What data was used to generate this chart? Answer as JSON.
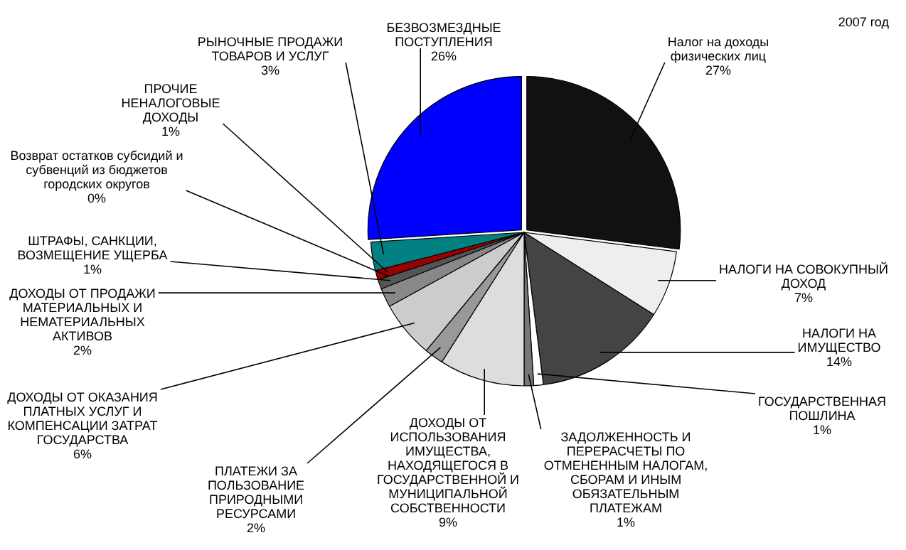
{
  "chart_data": {
    "type": "pie",
    "title": "2007 год",
    "categories": [
      "Налог на доходы физических лиц",
      "НАЛОГИ НА СОВОКУПНЫЙ ДОХОД",
      "НАЛОГИ НА ИМУЩЕСТВО",
      "ГОСУДАРСТВЕННАЯ ПОШЛИНА",
      "ЗАДОЛЖЕННОСТЬ И ПЕРЕРАСЧЕТЫ ПО ОТМЕНЕННЫМ НАЛОГАМ, СБОРАМ И ИНЫМ ОБЯЗАТЕЛЬНЫМ ПЛАТЕЖАМ",
      "ДОХОДЫ ОТ ИСПОЛЬЗОВАНИЯ ИМУЩЕСТВА, НАХОДЯЩЕГОСЯ В ГОСУДАРСТВЕННОЙ И МУНИЦИПАЛЬНОЙ СОБСТВЕННОСТИ",
      "ПЛАТЕЖИ ЗА ПОЛЬЗОВАНИЕ ПРИРОДНЫМИ РЕСУРСАМИ",
      "ДОХОДЫ ОТ ОКАЗАНИЯ ПЛАТНЫХ УСЛУГ И КОМПЕНСАЦИИ ЗАТРАТ ГОСУДАРСТВА",
      "ДОХОДЫ ОТ ПРОДАЖИ МАТЕРИАЛЬНЫХ И НЕМАТЕРИАЛЬНЫХ АКТИВОВ",
      "ШТРАФЫ, САНКЦИИ, ВОЗМЕЩЕНИЕ УЩЕРБА",
      "Возврат остатков субсидий и субвенций из бюджетов городских округов",
      "ПРОЧИЕ НЕНАЛОГОВЫЕ ДОХОДЫ",
      "РЫНОЧНЫЕ ПРОДАЖИ ТОВАРОВ И УСЛУГ",
      "БЕЗВОЗМЕЗДНЫЕ ПОСТУПЛЕНИЯ"
    ],
    "values": [
      27,
      7,
      14,
      1,
      1,
      9,
      2,
      6,
      2,
      1,
      0,
      1,
      3,
      26
    ],
    "value_labels": [
      "27%",
      "7%",
      "14%",
      "1%",
      "1%",
      "9%",
      "2%",
      "6%",
      "2%",
      "1%",
      "0%",
      "1%",
      "3%",
      "26%"
    ],
    "colors": [
      "#111111",
      "#eeeeee",
      "#444444",
      "#ffffff",
      "#777777",
      "#dddddd",
      "#999999",
      "#cccccc",
      "#888888",
      "#555555",
      "#f7f7f7",
      "#990000",
      "#008080",
      "#0000ff"
    ],
    "legend": false
  }
}
